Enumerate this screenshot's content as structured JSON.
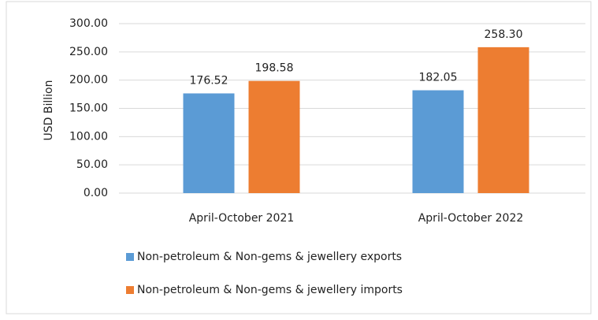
{
  "chart_data": {
    "type": "bar",
    "categories": [
      "April-October 2021",
      "April-October 2022"
    ],
    "y_label": "USD Billion",
    "series": [
      {
        "name": "Non-petroleum & Non-gems & jewellery exports",
        "color": "#5b9bd5",
        "values": [
          176.52,
          182.05
        ],
        "value_labels": [
          "176.52",
          "182.05"
        ]
      },
      {
        "name": "Non-petroleum & Non-gems & jewellery imports",
        "color": "#ed7d31",
        "values": [
          198.58,
          258.3
        ],
        "value_labels": [
          "198.58",
          "258.30"
        ]
      }
    ],
    "ylim": [
      0,
      300
    ],
    "yticks": [
      {
        "value": 0,
        "label": "0.00"
      },
      {
        "value": 50,
        "label": "50.00"
      },
      {
        "value": 100,
        "label": "100.00"
      },
      {
        "value": 150,
        "label": "150.00"
      },
      {
        "value": 200,
        "label": "200.00"
      },
      {
        "value": 250,
        "label": "250.00"
      },
      {
        "value": 300,
        "label": "300.00"
      }
    ],
    "grid": true,
    "legend": "bottom"
  }
}
